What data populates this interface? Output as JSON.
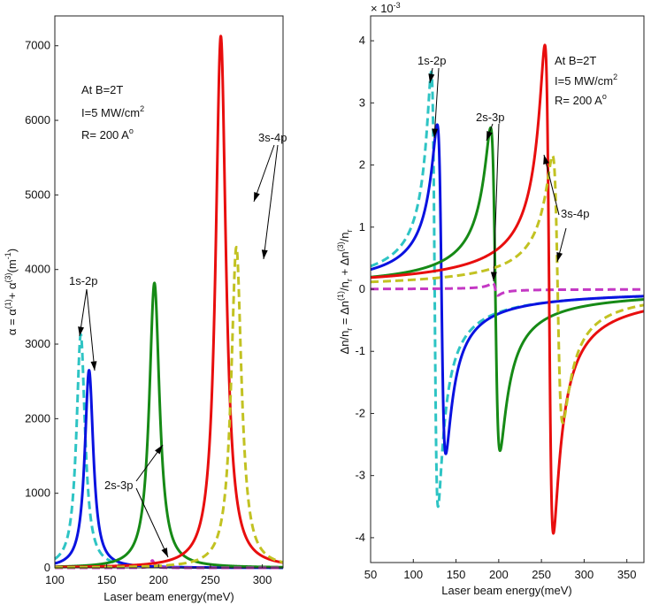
{
  "chart_data": [
    {
      "type": "line",
      "panel": "left",
      "xlabel": "Laser beam energy(meV)",
      "ylabel": "α = α(1) + α(3)(m-1)",
      "xlim": [
        100,
        320
      ],
      "ylim": [
        0,
        7400
      ],
      "xticks": [
        100,
        150,
        200,
        250,
        300
      ],
      "yticks": [
        0,
        1000,
        2000,
        3000,
        4000,
        5000,
        6000,
        7000
      ],
      "info_lines": [
        "At B=2T",
        "I=5 MW/cm2",
        "R= 200 A°"
      ],
      "annotations": [
        "1s-2p",
        "2s-3p",
        "3s-4p"
      ],
      "series": [
        {
          "name": "1s-2p (linear, dashed)",
          "color": "#2ec4c4",
          "dash": true,
          "peaks": [
            {
              "x": 125,
              "y": 3130,
              "w": 5
            }
          ]
        },
        {
          "name": "1s-2p (solid)",
          "color": "#0a12e0",
          "dash": false,
          "peaks": [
            {
              "x": 133,
              "y": 2650,
              "w": 5
            }
          ]
        },
        {
          "name": "2s-3p (solid)",
          "color": "#168a16",
          "dash": false,
          "peaks": [
            {
              "x": 196,
              "y": 3820,
              "w": 6
            }
          ]
        },
        {
          "name": "2s-3p (dashed)",
          "color": "#c438c4",
          "dash": true,
          "peaks": [
            {
              "x": 194,
              "y": 100,
              "w": 2
            }
          ]
        },
        {
          "name": "3s-4p (solid)",
          "color": "#e80e0e",
          "dash": false,
          "peaks": [
            {
              "x": 260,
              "y": 7130,
              "w": 6
            }
          ]
        },
        {
          "name": "3s-4p (dashed)",
          "color": "#c2c222",
          "dash": true,
          "peaks": [
            {
              "x": 275,
              "y": 4300,
              "w": 6
            }
          ]
        }
      ]
    },
    {
      "type": "line",
      "panel": "right",
      "xlabel": "Laser beam energy(meV)",
      "ylabel": "Δn/nr = Δn(1)/nr + Δn(3)/nr",
      "exponent": "× 10-3",
      "xlim": [
        50,
        370
      ],
      "ylim": [
        -4.4,
        4.4
      ],
      "xticks": [
        50,
        100,
        150,
        200,
        250,
        300,
        350
      ],
      "yticks": [
        -4,
        -3,
        -2,
        -1,
        0,
        1,
        2,
        3,
        4
      ],
      "info_lines": [
        "At B=2T",
        "I=5 MW/cm2",
        "R= 200 A°"
      ],
      "annotations": [
        "1s-2p",
        "2s-3p",
        "3s-4p"
      ],
      "series": [
        {
          "name": "1s-2p (dashed)",
          "color": "#2ec4c4",
          "dash": true,
          "x0": 125,
          "g": 4,
          "amp": 3.5
        },
        {
          "name": "1s-2p (solid)",
          "color": "#0a12e0",
          "dash": false,
          "x0": 133,
          "g": 5,
          "amp": 2.65
        },
        {
          "name": "2s-3p (solid)",
          "color": "#168a16",
          "dash": false,
          "x0": 196,
          "g": 5.5,
          "amp": 2.6
        },
        {
          "name": "2s-3p (dashed)",
          "color": "#c438c4",
          "dash": true,
          "x0": 196,
          "g": 3,
          "amp": 0.1
        },
        {
          "name": "3s-4p (solid)",
          "color": "#e80e0e",
          "dash": false,
          "x0": 259,
          "g": 5,
          "amp": 3.93
        },
        {
          "name": "3s-4p (dashed)",
          "color": "#c2c222",
          "dash": true,
          "x0": 269,
          "g": 6,
          "amp": 2.15
        }
      ]
    }
  ]
}
